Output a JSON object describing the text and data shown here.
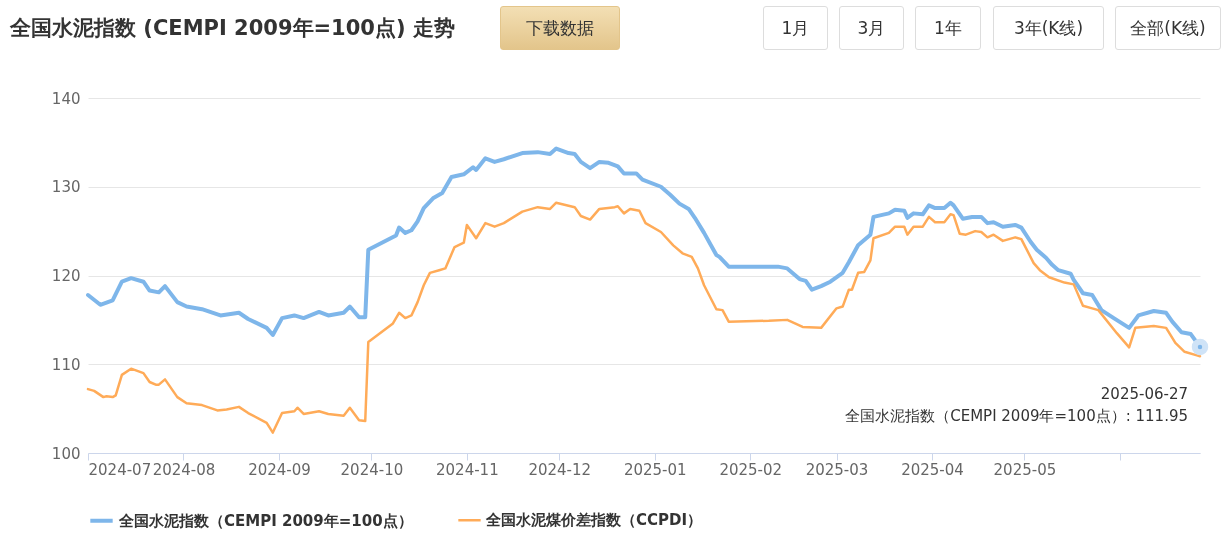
{
  "chart_data": {
    "type": "line",
    "title": "全国水泥指数 (CEMPI 2009年=100点) 走势",
    "annotations": [
      "下载数据",
      "1月",
      "3月",
      "1年",
      "3年(K线)",
      "全部(K线)",
      {
        "text": "2025-06-27\n全国水泥指数（CEMPI 2009年=100点）: 111.95",
        "x": "2025-06-27",
        "y": 111.95
      }
    ],
    "xlim": [
      "2024-07-01",
      "2025-06-27"
    ],
    "xticks": [
      {
        "value": "2024-07-01",
        "label": "2024-07"
      },
      {
        "value": "2024-08-01",
        "label": "2024-08"
      },
      {
        "value": "2024-09-01",
        "label": "2024-09"
      },
      {
        "value": "2024-10-01",
        "label": "2024-10"
      },
      {
        "value": "2024-11-01",
        "label": "2024-11"
      },
      {
        "value": "2024-12-01",
        "label": "2024-12"
      },
      {
        "value": "2025-01-01",
        "label": "2025-01"
      },
      {
        "value": "2025-02-01",
        "label": "2025-02"
      },
      {
        "value": "2025-03-01",
        "label": "2025-03"
      },
      {
        "value": "2025-04-01",
        "label": "2025-04"
      },
      {
        "value": "2025-05-01",
        "label": "2025-05"
      },
      {
        "value": "2025-06-01",
        "label": null
      }
    ],
    "ylim": [
      100,
      140
    ],
    "yticks": [
      100,
      110,
      120,
      130,
      140
    ],
    "grid": "y",
    "legend": "bottom",
    "series": [
      {
        "name": "全国水泥指数（CEMPI 2009年=100点）",
        "color": "#7eb6ea",
        "x": [
          "2024-07-01",
          "2024-07-05",
          "2024-07-09",
          "2024-07-12",
          "2024-07-15",
          "2024-07-19",
          "2024-07-21",
          "2024-07-24",
          "2024-07-26",
          "2024-07-30",
          "2024-08-02",
          "2024-08-07",
          "2024-08-13",
          "2024-08-19",
          "2024-08-22",
          "2024-08-28",
          "2024-08-30",
          "2024-09-02",
          "2024-09-06",
          "2024-09-09",
          "2024-09-14",
          "2024-09-17",
          "2024-09-22",
          "2024-09-24",
          "2024-09-27",
          "2024-09-29",
          "2024-09-30",
          "2024-10-09",
          "2024-10-10",
          "2024-10-12",
          "2024-10-14",
          "2024-10-16",
          "2024-10-18",
          "2024-10-21",
          "2024-10-24",
          "2024-10-27",
          "2024-10-31",
          "2024-11-03",
          "2024-11-04",
          "2024-11-07",
          "2024-11-10",
          "2024-11-13",
          "2024-11-19",
          "2024-11-24",
          "2024-11-28",
          "2024-11-30",
          "2024-12-04",
          "2024-12-06",
          "2024-12-08",
          "2024-12-11",
          "2024-12-14",
          "2024-12-17",
          "2024-12-20",
          "2024-12-22",
          "2024-12-26",
          "2024-12-28",
          "2025-01-03",
          "2025-01-06",
          "2025-01-09",
          "2025-01-12",
          "2025-01-14",
          "2025-01-17",
          "2025-01-21",
          "2025-01-22",
          "2025-01-25",
          "2025-02-10",
          "2025-02-13",
          "2025-02-17",
          "2025-02-19",
          "2025-02-21",
          "2025-02-24",
          "2025-02-27",
          "2025-03-03",
          "2025-03-05",
          "2025-03-08",
          "2025-03-12",
          "2025-03-13",
          "2025-03-18",
          "2025-03-20",
          "2025-03-23",
          "2025-03-24",
          "2025-03-26",
          "2025-03-29",
          "2025-03-31",
          "2025-04-02",
          "2025-04-05",
          "2025-04-07",
          "2025-04-08",
          "2025-04-11",
          "2025-04-14",
          "2025-04-17",
          "2025-04-19",
          "2025-04-21",
          "2025-04-24",
          "2025-04-28",
          "2025-04-30",
          "2025-05-03",
          "2025-05-05",
          "2025-05-08",
          "2025-05-10",
          "2025-05-12",
          "2025-05-16",
          "2025-05-17",
          "2025-05-20",
          "2025-05-23",
          "2025-05-26",
          "2025-05-30",
          "2025-06-04",
          "2025-06-07",
          "2025-06-12",
          "2025-06-16",
          "2025-06-18",
          "2025-06-21",
          "2025-06-24",
          "2025-06-27"
        ],
        "values": [
          117.8,
          116.7,
          117.2,
          119.3,
          119.7,
          119.3,
          118.3,
          118.1,
          118.8,
          117.0,
          116.5,
          116.2,
          115.5,
          115.8,
          115.1,
          114.1,
          113.3,
          115.2,
          115.5,
          115.2,
          115.9,
          115.5,
          115.8,
          116.5,
          115.3,
          115.3,
          122.9,
          124.5,
          125.4,
          124.8,
          125.1,
          126.1,
          127.6,
          128.7,
          129.3,
          131.1,
          131.4,
          132.2,
          131.9,
          133.2,
          132.8,
          133.1,
          133.8,
          133.9,
          133.7,
          134.3,
          133.8,
          133.7,
          132.8,
          132.1,
          132.8,
          132.7,
          132.3,
          131.5,
          131.5,
          130.8,
          130.0,
          129.1,
          128.1,
          127.5,
          126.5,
          124.8,
          122.3,
          122.1,
          121.0,
          121.0,
          120.8,
          119.6,
          119.4,
          118.4,
          118.8,
          119.3,
          120.3,
          121.5,
          123.4,
          124.6,
          126.6,
          127.0,
          127.4,
          127.3,
          126.5,
          127.0,
          126.9,
          127.9,
          127.6,
          127.6,
          128.2,
          127.9,
          126.4,
          126.6,
          126.6,
          125.9,
          126.0,
          125.5,
          125.7,
          125.4,
          123.8,
          122.9,
          122.0,
          121.2,
          120.6,
          120.2,
          119.5,
          118.0,
          117.8,
          116.1,
          115.2,
          114.1,
          115.5,
          116.0,
          115.8,
          114.8,
          113.6,
          113.4,
          111.95
        ]
      },
      {
        "name": "全国水泥煤价差指数（CCPDI）",
        "color": "#ffab58",
        "x": [
          "2024-07-01",
          "2024-07-03",
          "2024-07-06",
          "2024-07-07",
          "2024-07-09",
          "2024-07-10",
          "2024-07-12",
          "2024-07-15",
          "2024-07-19",
          "2024-07-21",
          "2024-07-23",
          "2024-07-24",
          "2024-07-26",
          "2024-07-30",
          "2024-08-02",
          "2024-08-07",
          "2024-08-12",
          "2024-08-15",
          "2024-08-19",
          "2024-08-22",
          "2024-08-28",
          "2024-08-30",
          "2024-09-02",
          "2024-09-06",
          "2024-09-07",
          "2024-09-09",
          "2024-09-14",
          "2024-09-17",
          "2024-09-22",
          "2024-09-24",
          "2024-09-27",
          "2024-09-29",
          "2024-09-30",
          "2024-10-08",
          "2024-10-10",
          "2024-10-12",
          "2024-10-14",
          "2024-10-16",
          "2024-10-18",
          "2024-10-20",
          "2024-10-23",
          "2024-10-25",
          "2024-10-28",
          "2024-10-31",
          "2024-11-01",
          "2024-11-04",
          "2024-11-07",
          "2024-11-10",
          "2024-11-13",
          "2024-11-19",
          "2024-11-24",
          "2024-11-28",
          "2024-11-30",
          "2024-12-06",
          "2024-12-08",
          "2024-12-11",
          "2024-12-14",
          "2024-12-19",
          "2024-12-20",
          "2024-12-22",
          "2024-12-24",
          "2024-12-27",
          "2024-12-29",
          "2025-01-03",
          "2025-01-07",
          "2025-01-10",
          "2025-01-13",
          "2025-01-15",
          "2025-01-17",
          "2025-01-21",
          "2025-01-23",
          "2025-01-25",
          "2025-02-07",
          "2025-02-13",
          "2025-02-18",
          "2025-02-24",
          "2025-03-01",
          "2025-03-03",
          "2025-03-05",
          "2025-03-06",
          "2025-03-08",
          "2025-03-10",
          "2025-03-12",
          "2025-03-13",
          "2025-03-18",
          "2025-03-20",
          "2025-03-23",
          "2025-03-24",
          "2025-03-26",
          "2025-03-29",
          "2025-03-31",
          "2025-04-02",
          "2025-04-05",
          "2025-04-07",
          "2025-04-08",
          "2025-04-10",
          "2025-04-12",
          "2025-04-15",
          "2025-04-17",
          "2025-04-19",
          "2025-04-21",
          "2025-04-24",
          "2025-04-28",
          "2025-04-30",
          "2025-05-04",
          "2025-05-06",
          "2025-05-09",
          "2025-05-14",
          "2025-05-17",
          "2025-05-20",
          "2025-05-23",
          "2025-05-25",
          "2025-05-31",
          "2025-06-04",
          "2025-06-06",
          "2025-06-12",
          "2025-06-16",
          "2025-06-19",
          "2025-06-22",
          "2025-06-26",
          "2025-06-27"
        ],
        "values": [
          107.2,
          107.0,
          106.3,
          106.4,
          106.3,
          106.5,
          108.8,
          109.5,
          109.0,
          108.0,
          107.7,
          107.7,
          108.3,
          106.3,
          105.6,
          105.4,
          104.8,
          104.9,
          105.2,
          104.5,
          103.4,
          102.3,
          104.5,
          104.7,
          105.1,
          104.4,
          104.7,
          104.4,
          104.2,
          105.1,
          103.7,
          103.6,
          112.5,
          114.6,
          115.8,
          115.2,
          115.5,
          117.0,
          118.9,
          120.3,
          120.6,
          120.8,
          123.2,
          123.7,
          125.7,
          124.2,
          125.9,
          125.5,
          125.9,
          127.2,
          127.7,
          127.5,
          128.2,
          127.7,
          126.7,
          126.3,
          127.5,
          127.7,
          127.8,
          127.0,
          127.5,
          127.3,
          125.9,
          124.9,
          123.4,
          122.5,
          122.1,
          120.8,
          118.9,
          116.2,
          116.1,
          114.8,
          114.9,
          115.0,
          114.2,
          114.1,
          116.3,
          116.5,
          118.4,
          118.4,
          120.3,
          120.4,
          121.7,
          124.2,
          124.8,
          125.5,
          125.5,
          124.6,
          125.5,
          125.5,
          126.6,
          126.0,
          126.0,
          126.9,
          126.8,
          124.7,
          124.6,
          125.0,
          124.9,
          124.3,
          124.6,
          123.9,
          124.3,
          124.1,
          121.4,
          120.6,
          119.8,
          119.2,
          119.0,
          116.6,
          116.3,
          116.1,
          113.5,
          111.9,
          114.1,
          114.3,
          114.1,
          112.4,
          111.4,
          111.0,
          110.9
        ]
      }
    ]
  }
}
